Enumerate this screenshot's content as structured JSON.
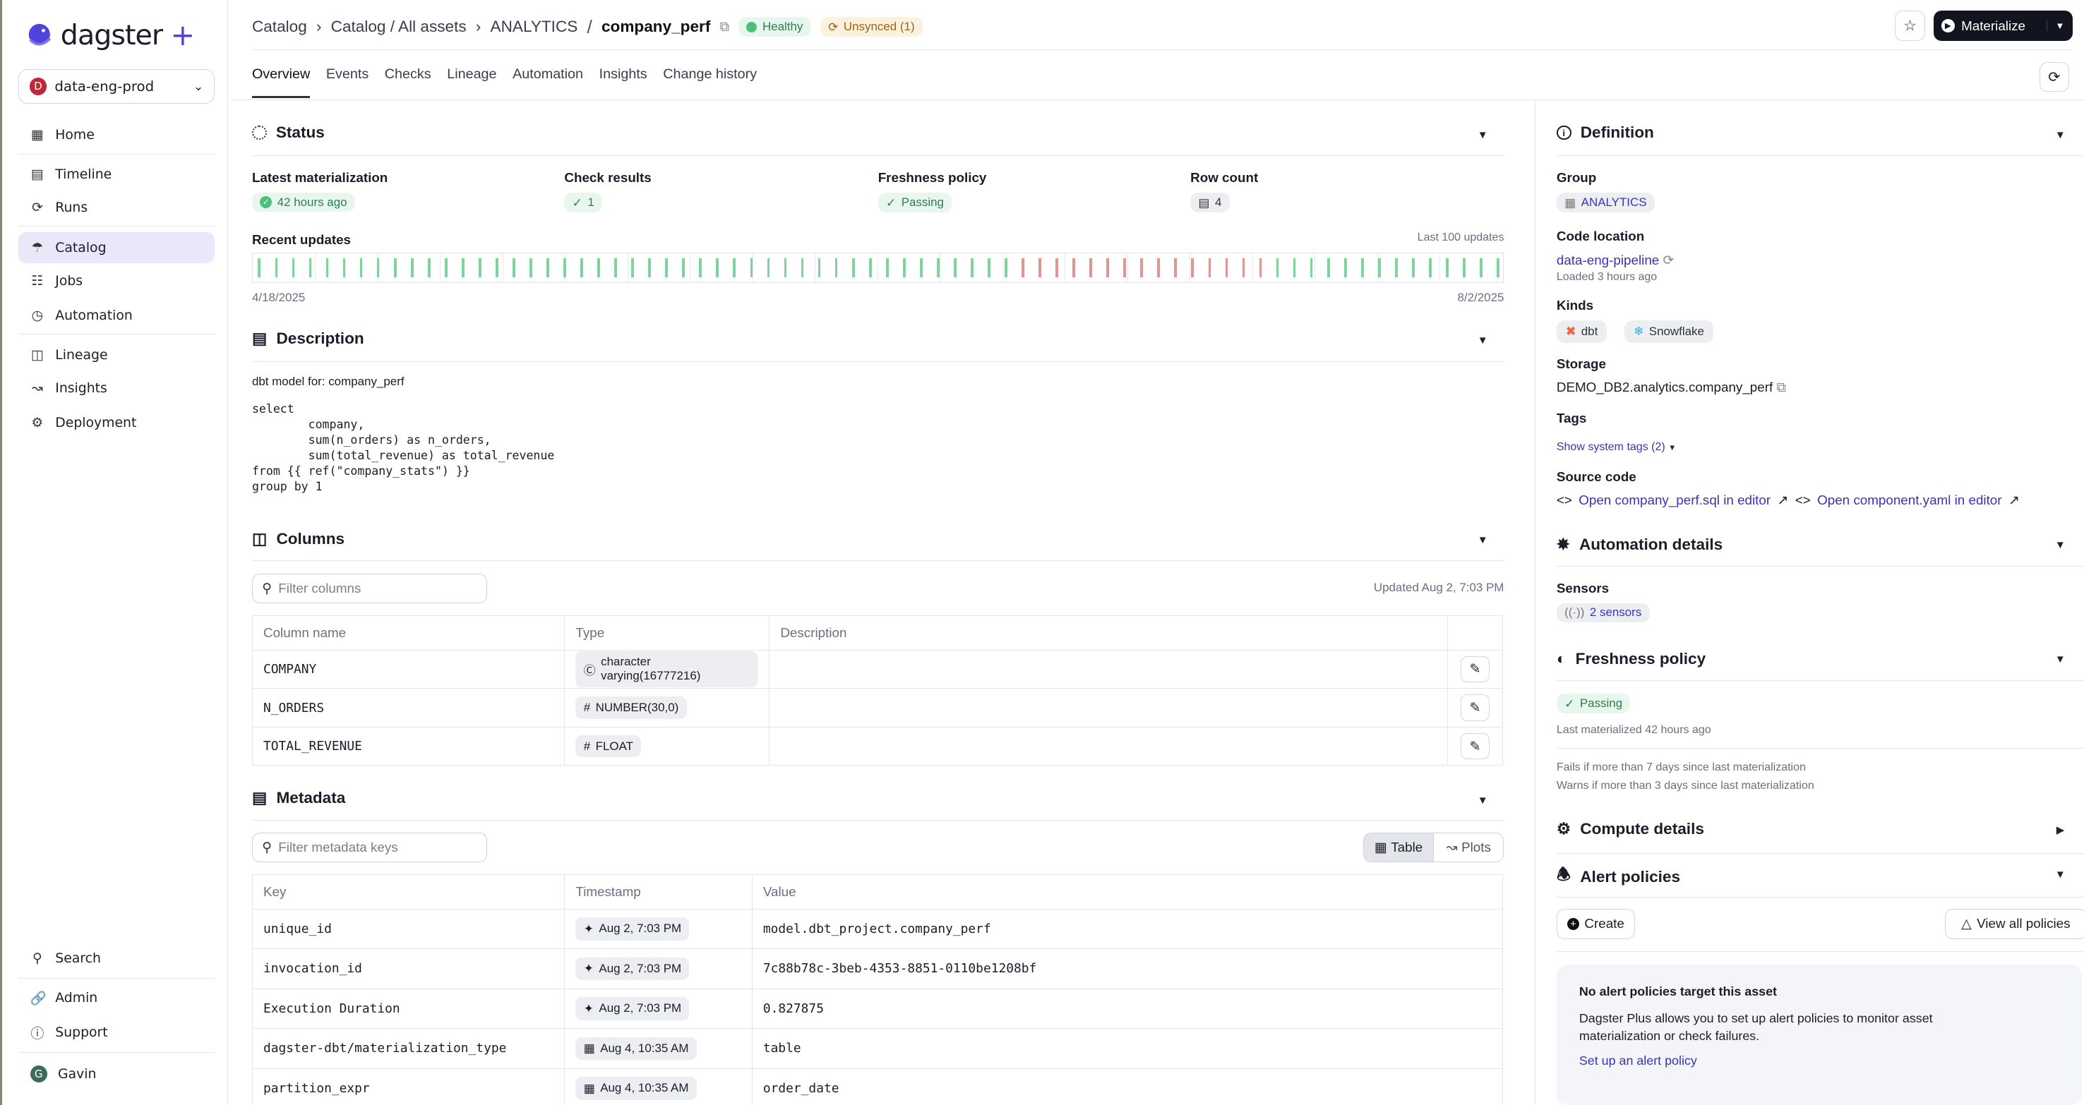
{
  "sidebar": {
    "logo": "dagster",
    "logo_plus": "+",
    "workspace": {
      "initial": "D",
      "name": "data-eng-prod"
    },
    "items": [
      {
        "label": "Home",
        "icon": "grid-icon"
      },
      {
        "label": "Timeline",
        "icon": "timeline-icon"
      },
      {
        "label": "Runs",
        "icon": "runs-icon"
      },
      {
        "label": "Catalog",
        "icon": "catalog-icon",
        "active": true
      },
      {
        "label": "Jobs",
        "icon": "jobs-icon"
      },
      {
        "label": "Automation",
        "icon": "clock-icon"
      },
      {
        "label": "Lineage",
        "icon": "lineage-icon"
      },
      {
        "label": "Insights",
        "icon": "insights-icon"
      },
      {
        "label": "Deployment",
        "icon": "gear-icon"
      }
    ],
    "bottom": [
      {
        "label": "Search",
        "icon": "search-icon"
      },
      {
        "label": "Admin",
        "icon": "admin-icon"
      },
      {
        "label": "Support",
        "icon": "help-icon"
      }
    ],
    "user": {
      "initial": "G",
      "name": "Gavin"
    }
  },
  "header": {
    "breadcrumbs": [
      "Catalog",
      "Catalog / All assets",
      "ANALYTICS"
    ],
    "sep": "/",
    "asset": "company_perf",
    "health": "Healthy",
    "sync": "Unsynced (1)",
    "materialize": "Materialize"
  },
  "tabs": [
    "Overview",
    "Events",
    "Checks",
    "Lineage",
    "Automation",
    "Insights",
    "Change history"
  ],
  "status": {
    "title": "Status",
    "latest_label": "Latest materialization",
    "latest_value": "42 hours ago",
    "checks_label": "Check results",
    "checks_value": "1",
    "fresh_label": "Freshness policy",
    "fresh_value": "Passing",
    "rows_label": "Row count",
    "rows_value": "4",
    "recent_label": "Recent updates",
    "recent_note": "Last 100 updates",
    "start_date": "4/18/2025",
    "end_date": "8/2/2025",
    "updates": [
      "s",
      "s",
      "s",
      "s",
      "s",
      "s",
      "s",
      "s",
      "s",
      "s",
      "s",
      "s",
      "s",
      "s",
      "s",
      "s",
      "s",
      "s",
      "s",
      "s",
      "s",
      "s",
      "s",
      "s",
      "s",
      "s",
      "s",
      "s",
      "s",
      "s",
      "s",
      "s",
      "s",
      "s",
      "s",
      "s",
      "s",
      "s",
      "s",
      "s",
      "s",
      "s",
      "s",
      "s",
      "s",
      "f",
      "f",
      "f",
      "f",
      "f",
      "f",
      "f",
      "f",
      "f",
      "f",
      "f",
      "f",
      "f",
      "f",
      "f",
      "s",
      "s",
      "s",
      "s",
      "s",
      "s",
      "s",
      "s",
      "s",
      "s",
      "s",
      "s",
      "s",
      "s"
    ],
    "colors": {
      "success": "#7fd49b",
      "failure": "#e0958e"
    }
  },
  "description": {
    "title": "Description",
    "text": "dbt model for: company_perf",
    "sql": "select\n        company,\n        sum(n_orders) as n_orders,\n        sum(total_revenue) as total_revenue\nfrom {{ ref(\"company_stats\") }}\ngroup by 1"
  },
  "columns": {
    "title": "Columns",
    "filter_placeholder": "Filter columns",
    "updated": "Updated Aug 2, 7:03 PM",
    "headers": [
      "Column name",
      "Type",
      "Description"
    ],
    "rows": [
      {
        "name": "COMPANY",
        "type": "character varying(16777216)",
        "type_icon": "text-icon"
      },
      {
        "name": "N_ORDERS",
        "type": "NUMBER(30,0)",
        "type_icon": "hash-icon"
      },
      {
        "name": "TOTAL_REVENUE",
        "type": "FLOAT",
        "type_icon": "hash-icon"
      }
    ]
  },
  "metadata": {
    "title": "Metadata",
    "filter_placeholder": "Filter metadata keys",
    "view_table": "Table",
    "view_plots": "Plots",
    "headers": [
      "Key",
      "Timestamp",
      "Value"
    ],
    "rows": [
      {
        "key": "unique_id",
        "ts": "Aug 2, 7:03 PM",
        "ts_icon": "sparkle-icon",
        "value": "model.dbt_project.company_perf"
      },
      {
        "key": "invocation_id",
        "ts": "Aug 2, 7:03 PM",
        "ts_icon": "sparkle-icon",
        "value": "7c88b78c-3beb-4353-8851-0110be1208bf"
      },
      {
        "key": "Execution Duration",
        "ts": "Aug 2, 7:03 PM",
        "ts_icon": "sparkle-icon",
        "value": "0.827875"
      },
      {
        "key": "dagster-dbt/materialization_type",
        "ts": "Aug 4, 10:35 AM",
        "ts_icon": "table-icon",
        "value": "table"
      },
      {
        "key": "partition_expr",
        "ts": "Aug 4, 10:35 AM",
        "ts_icon": "table-icon",
        "value": "order_date"
      }
    ]
  },
  "definition": {
    "title": "Definition",
    "group_label": "Group",
    "group": "ANALYTICS",
    "code_label": "Code location",
    "code": "data-eng-pipeline",
    "code_loaded": "Loaded 3 hours ago",
    "kinds_label": "Kinds",
    "kinds": [
      "dbt",
      "Snowflake"
    ],
    "storage_label": "Storage",
    "storage": "DEMO_DB2.analytics.company_perf",
    "tags_label": "Tags",
    "tags_toggle": "Show system tags (2)",
    "source_label": "Source code",
    "source_links": [
      "Open company_perf.sql in editor",
      "Open component.yaml in editor"
    ]
  },
  "automation": {
    "title": "Automation details",
    "sensors_label": "Sensors",
    "sensors": "2 sensors"
  },
  "freshness": {
    "title": "Freshness policy",
    "status": "Passing",
    "last": "Last materialized 42 hours ago",
    "fail_rule": "Fails if more than 7 days since last materialization",
    "warn_rule": "Warns if more than 3 days since last materialization"
  },
  "compute": {
    "title": "Compute details"
  },
  "alerts": {
    "title": "Alert policies",
    "create": "Create",
    "view_all": "View all policies",
    "empty_title": "No alert policies target this asset",
    "empty_text": "Dagster Plus allows you to set up alert policies to monitor asset materialization or check failures.",
    "setup_link": "Set up an alert policy"
  }
}
